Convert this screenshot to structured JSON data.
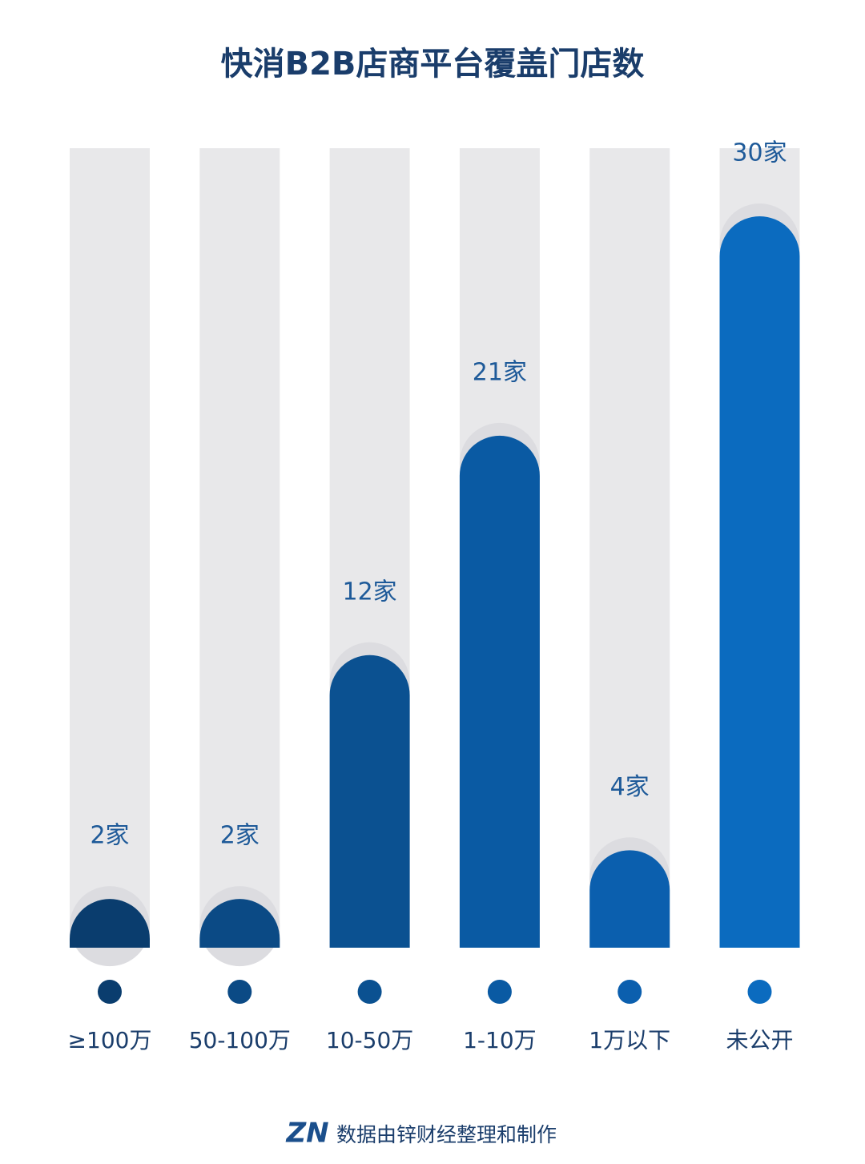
{
  "chart_data": {
    "type": "bar",
    "title": "快消B2B店商平台覆盖门店数",
    "categories": [
      "≥100万",
      "50-100万",
      "10-50万",
      "1-10万",
      "1万以下",
      "未公开"
    ],
    "values": [
      2,
      2,
      12,
      21,
      4,
      30
    ],
    "value_labels": [
      "2家",
      "2家",
      "12家",
      "21家",
      "4家",
      "30家"
    ],
    "colors": [
      "#0a3d6e",
      "#0b4a85",
      "#0b5191",
      "#0a5aa3",
      "#0b5fae",
      "#0b6bbf"
    ],
    "footer": {
      "logo": "ZN",
      "text": "数据由锌财经整理和制作"
    }
  }
}
